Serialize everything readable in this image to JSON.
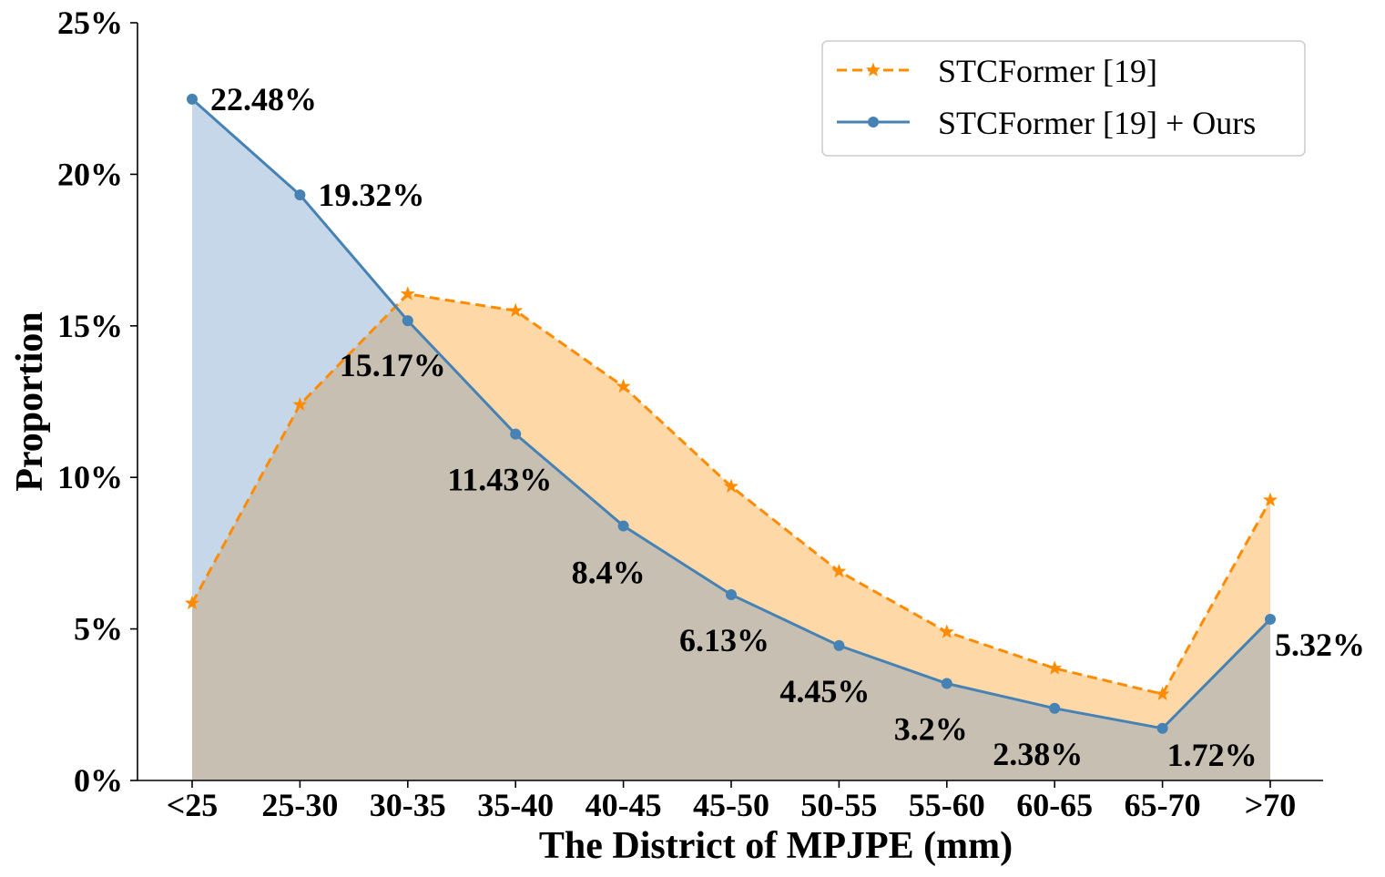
{
  "chart_data": {
    "type": "line",
    "title": "",
    "xlabel": "The District of MPJPE (mm)",
    "ylabel": "Proportion",
    "categories": [
      "<25",
      "25-30",
      "30-35",
      "35-40",
      "40-45",
      "45-50",
      "50-55",
      "55-60",
      "60-65",
      "65-70",
      ">70"
    ],
    "ylim": [
      0,
      25
    ],
    "yticks": [
      0,
      5,
      10,
      15,
      20,
      25
    ],
    "ytick_labels": [
      "0%",
      "5%",
      "10%",
      "15%",
      "20%",
      "25%"
    ],
    "grid": false,
    "legend_position": "top-right",
    "series": [
      {
        "name": "STCFormer [19]",
        "style": "dashed",
        "marker": "star",
        "color": "#ff8c00",
        "fill_color": "#ffd8a8",
        "values": [
          5.85,
          12.4,
          16.05,
          15.5,
          13.0,
          9.7,
          6.9,
          4.9,
          3.7,
          2.85,
          9.25
        ]
      },
      {
        "name": "STCFormer [19] + Ours",
        "style": "solid",
        "marker": "circle",
        "color": "#4682b4",
        "fill_color": "#c6d7e9",
        "values": [
          22.48,
          19.32,
          15.17,
          11.43,
          8.4,
          6.13,
          4.45,
          3.2,
          2.38,
          1.72,
          5.32
        ],
        "data_labels": [
          "22.48%",
          "19.32%",
          "15.17%",
          "11.43%",
          "8.4%",
          "6.13%",
          "4.45%",
          "3.2%",
          "2.38%",
          "1.72%",
          "5.32%"
        ]
      }
    ],
    "overlap_color": "#c7bfb2"
  }
}
